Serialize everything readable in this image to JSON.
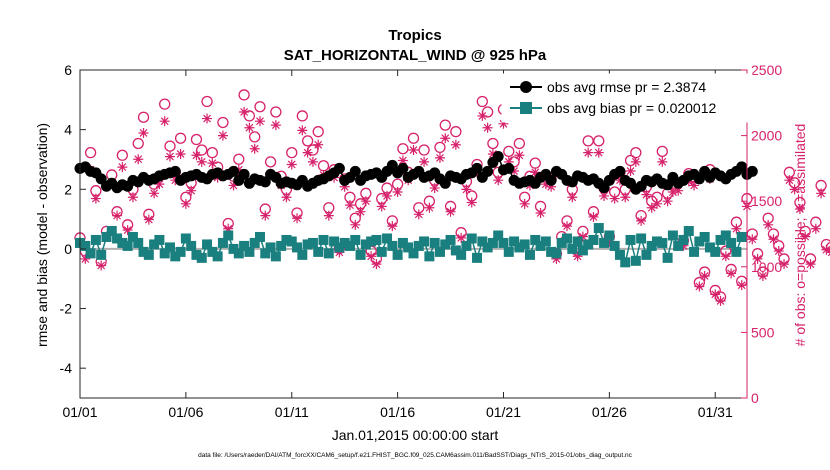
{
  "chart_data": {
    "type": "line",
    "title": "Tropics",
    "subtitle": "SAT_HORIZONTAL_WIND @ 925 hPa",
    "xlabel": "Jan.01,2015 00:00:00 start",
    "ylabel": "rmse and bias (model - observation)",
    "y2label": "# of obs: o=possible; ∗=assimilated",
    "xlim": [
      0,
      31.5
    ],
    "ylim": [
      -5,
      6
    ],
    "y2lim": [
      0,
      2500
    ],
    "x_ticks": [
      0,
      5,
      10,
      15,
      20,
      25,
      30
    ],
    "x_ticklabels": [
      "01/01",
      "01/06",
      "01/11",
      "01/16",
      "01/21",
      "01/26",
      "01/31"
    ],
    "y_ticks": [
      -4,
      -2,
      0,
      2,
      4,
      6
    ],
    "y_ticklabels": [
      "-4",
      "-2",
      "0",
      "2",
      "4",
      "6"
    ],
    "y2_ticks": [
      0,
      500,
      1000,
      1500,
      2000,
      2500
    ],
    "y2_ticklabels": [
      "0",
      "500",
      "1000",
      "1500",
      "2000",
      "2500"
    ],
    "legend_position": "top-right",
    "legend": [
      "obs avg rmse pr = 2.3874",
      "obs avg bias pr = 0.020012"
    ],
    "footer": "data file: /Users/raeder/DAI/ATM_forcXX/CAM6_setup/f.e21.FHIST_BGC.f09_025.CAM6assim.011/BadSST/Diags_NTrS_2015-01/obs_diag_output.nc",
    "colors": {
      "rmse": "#000000",
      "bias": "#1a7f7f",
      "obs_count": "#d6226b",
      "zero_line": "#b0b0b0"
    },
    "x_step_days": 0.25,
    "series": [
      {
        "name": "obs avg rmse pr",
        "axis": "left",
        "values": [
          2.7,
          2.75,
          2.6,
          2.55,
          2.35,
          2.1,
          2.2,
          2.05,
          2.15,
          2.1,
          2.3,
          2.25,
          2.4,
          2.3,
          2.35,
          2.45,
          2.5,
          2.55,
          2.6,
          2.3,
          2.4,
          2.45,
          2.5,
          2.4,
          2.35,
          2.5,
          2.55,
          2.45,
          2.5,
          2.6,
          2.3,
          2.5,
          2.2,
          2.35,
          2.3,
          2.25,
          2.5,
          2.4,
          2.2,
          2.25,
          2.2,
          2.15,
          2.3,
          2.1,
          2.2,
          2.3,
          2.35,
          2.45,
          2.55,
          2.7,
          2.3,
          2.4,
          2.6,
          2.3,
          2.45,
          2.5,
          2.55,
          2.4,
          2.6,
          2.8,
          2.55,
          2.7,
          2.4,
          2.5,
          2.6,
          2.4,
          2.45,
          2.55,
          2.35,
          2.2,
          2.45,
          2.4,
          2.35,
          2.5,
          2.55,
          2.7,
          2.4,
          2.6,
          2.9,
          3.1,
          2.65,
          2.7,
          2.3,
          2.2,
          2.25,
          2.3,
          2.2,
          2.4,
          2.5,
          2.3,
          2.6,
          2.5,
          2.3,
          2.25,
          2.45,
          2.4,
          2.3,
          2.35,
          2.2,
          2.05,
          2.3,
          2.5,
          2.6,
          2.3,
          2.2,
          2.0,
          2.1,
          2.3,
          2.25,
          2.35,
          2.2,
          2.15,
          2.4,
          2.2,
          2.3,
          2.45,
          2.5,
          2.35,
          2.6,
          2.4,
          2.55,
          2.45,
          2.35,
          2.5,
          2.6,
          2.75,
          2.5,
          2.6
        ]
      },
      {
        "name": "obs avg bias pr",
        "axis": "left",
        "values": [
          0.2,
          0.1,
          -0.15,
          0.3,
          -0.2,
          0.4,
          0.6,
          0.35,
          0.2,
          0.1,
          0.4,
          0.2,
          -0.1,
          -0.2,
          0.15,
          0.3,
          -0.15,
          0.05,
          -0.25,
          -0.1,
          0.35,
          0.1,
          -0.2,
          -0.3,
          0.15,
          -0.1,
          -0.25,
          0.2,
          0.45,
          0.0,
          -0.15,
          0.1,
          -0.1,
          0.2,
          0.4,
          -0.15,
          0.05,
          -0.25,
          0.1,
          0.3,
          0.25,
          0.05,
          -0.2,
          0.15,
          0.2,
          -0.1,
          0.3,
          -0.15,
          0.25,
          0.05,
          0.2,
          0.1,
          0.3,
          -0.2,
          0.15,
          0.25,
          0.3,
          -0.1,
          0.35,
          0.1,
          -0.2,
          0.2,
          0.05,
          -0.15,
          0.1,
          0.25,
          -0.25,
          0.2,
          -0.1,
          0.15,
          0.3,
          -0.05,
          -0.2,
          0.1,
          0.35,
          -0.3,
          0.25,
          0.05,
          0.2,
          0.45,
          0.2,
          -0.1,
          0.25,
          0.05,
          0.15,
          -0.2,
          0.3,
          0.1,
          0.25,
          -0.1,
          -0.15,
          0.2,
          0.35,
          0.0,
          0.25,
          -0.05,
          0.15,
          0.3,
          0.7,
          0.2,
          0.45,
          0.1,
          -0.2,
          -0.45,
          0.3,
          -0.4,
          0.35,
          -0.2,
          0.1,
          0.25,
          0.2,
          -0.3,
          0.45,
          0.1,
          0.3,
          0.6,
          -0.1,
          0.25,
          0.4,
          0.05,
          -0.1,
          0.3,
          0.45,
          0.2,
          -0.1,
          0.4
        ]
      },
      {
        "name": "possible obs",
        "axis": "right",
        "marker": "circle",
        "values": [
          1220,
          1120,
          1870,
          1580,
          1040,
          1270,
          1700,
          1420,
          1850,
          1320,
          1590,
          1940,
          2140,
          1400,
          1630,
          1690,
          2240,
          1920,
          1720,
          1980,
          1530,
          1640,
          1970,
          1890,
          2260,
          1870,
          1760,
          2100,
          1330,
          1690,
          1820,
          2310,
          2150,
          1990,
          2220,
          1440,
          1800,
          2180,
          1690,
          1590,
          1870,
          1410,
          2150,
          1960,
          1890,
          2030,
          1770,
          1450,
          1740,
          1140,
          1670,
          1530,
          1370,
          1480,
          1560,
          1120,
          1060,
          1520,
          1600,
          1350,
          1630,
          1900,
          1720,
          1980,
          1450,
          1890,
          1500,
          1660,
          1910,
          2080,
          1460,
          2030,
          1260,
          1650,
          1540,
          1780,
          2260,
          2180,
          1940,
          1720,
          2200,
          1880,
          1800,
          1940,
          1530,
          1690,
          1790,
          1460,
          1690,
          1670,
          1100,
          1230,
          1350,
          1590,
          1120,
          1270,
          1960,
          1420,
          1960,
          1600,
          1230,
          1570,
          1720,
          1590,
          1810,
          1870,
          1390,
          1610,
          1500,
          1530,
          1880,
          1560,
          1630,
          1640,
          1200,
          1710,
          1680,
          880,
          960,
          1740,
          820,
          770,
          1120,
          980,
          1340,
          890,
          1520,
          1250,
          1100,
          960,
          1370,
          1250,
          1160,
          1060,
          1720,
          1640,
          1490,
          1270,
          1060,
          1340,
          1620,
          1170,
          1150,
          1390,
          1630,
          1620,
          1260,
          1750,
          1660,
          1770,
          1710,
          1190,
          1440,
          1310,
          1220,
          1860,
          1570,
          1090,
          1590,
          1620,
          1460
        ]
      },
      {
        "name": "assimilated obs",
        "axis": "right",
        "marker": "asterisk",
        "values": [
          1180,
          1060,
          1740,
          1520,
          1010,
          1230,
          1640,
          1390,
          1760,
          1280,
          1530,
          1820,
          2020,
          1360,
          1560,
          1630,
          2110,
          1840,
          1660,
          1860,
          1480,
          1580,
          1850,
          1800,
          2130,
          1790,
          1680,
          2000,
          1290,
          1620,
          1740,
          2180,
          2060,
          1900,
          2110,
          1390,
          1710,
          2080,
          1620,
          1530,
          1780,
          1370,
          2040,
          1870,
          1800,
          1930,
          1700,
          1390,
          1680,
          1110,
          1610,
          1470,
          1320,
          1420,
          1500,
          1080,
          1020,
          1460,
          1540,
          1310,
          1570,
          1810,
          1660,
          1890,
          1400,
          1800,
          1450,
          1600,
          1830,
          1980,
          1420,
          1930,
          1220,
          1590,
          1490,
          1720,
          2150,
          2060,
          1860,
          1660,
          2090,
          1800,
          1730,
          1850,
          1480,
          1620,
          1720,
          1410,
          1630,
          1610,
          1060,
          1190,
          1310,
          1530,
          1080,
          1230,
          1870,
          1380,
          1870,
          1540,
          1190,
          1520,
          1660,
          1530,
          1730,
          1800,
          1350,
          1550,
          1450,
          1480,
          1800,
          1500,
          1570,
          1580,
          1160,
          1650,
          1620,
          850,
          930,
          1670,
          790,
          740,
          1080,
          950,
          1290,
          860,
          1460,
          1210,
          1060,
          930,
          1320,
          1210,
          1120,
          1020,
          1660,
          1590,
          1440,
          1230,
          1020,
          1290,
          1560,
          1130,
          1110,
          1340,
          1570,
          1560,
          1220,
          1680,
          1600,
          1700,
          1650,
          1150,
          1390,
          1270,
          1180,
          1790,
          1510,
          1050,
          1530,
          1560,
          1410
        ]
      }
    ]
  }
}
